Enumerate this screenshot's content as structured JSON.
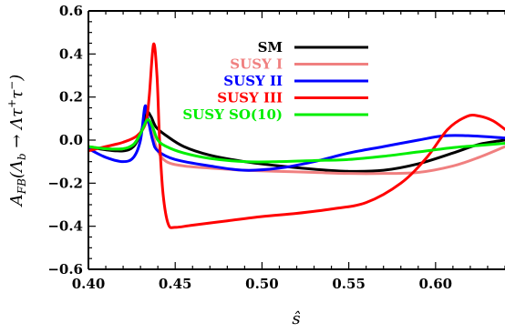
{
  "chart_data": {
    "type": "line",
    "xlabel": "ŝ",
    "ylabel": {
      "base": "A",
      "subscript": "FB",
      "paren_open": "(Λ",
      "paren_sub": "b",
      "arrow": " → Λτ",
      "sup1": "+",
      "tau2": "τ",
      "sup2": "−",
      "paren_close": ")"
    },
    "xlim": [
      0.4,
      0.64
    ],
    "ylim": [
      -0.6,
      0.6
    ],
    "x_ticks": [
      0.4,
      0.45,
      0.5,
      0.55,
      0.6
    ],
    "x_tick_labels": [
      "0.40",
      "0.45",
      "0.50",
      "0.55",
      "0.60"
    ],
    "y_ticks": [
      -0.6,
      -0.4,
      -0.2,
      0.0,
      0.2,
      0.4,
      0.6
    ],
    "y_tick_labels": [
      "−0.6",
      "−0.4",
      "−0.2",
      "0.0",
      "0.2",
      "0.4",
      "0.6"
    ],
    "legend_position": "top-right",
    "series": [
      {
        "name": "SM",
        "color": "#000000",
        "points": [
          [
            0.4,
            -0.03
          ],
          [
            0.41,
            -0.045
          ],
          [
            0.42,
            -0.05
          ],
          [
            0.426,
            -0.03
          ],
          [
            0.43,
            0.03
          ],
          [
            0.4335,
            0.125
          ],
          [
            0.436,
            0.11
          ],
          [
            0.439,
            0.06
          ],
          [
            0.445,
            0.02
          ],
          [
            0.455,
            -0.03
          ],
          [
            0.47,
            -0.07
          ],
          [
            0.49,
            -0.1
          ],
          [
            0.51,
            -0.12
          ],
          [
            0.53,
            -0.135
          ],
          [
            0.55,
            -0.145
          ],
          [
            0.57,
            -0.14
          ],
          [
            0.59,
            -0.11
          ],
          [
            0.61,
            -0.06
          ],
          [
            0.625,
            -0.02
          ],
          [
            0.64,
            0.0
          ]
        ]
      },
      {
        "name": "SUSY I",
        "color": "#f08080",
        "points": [
          [
            0.4,
            -0.03
          ],
          [
            0.41,
            -0.04
          ],
          [
            0.42,
            -0.04
          ],
          [
            0.426,
            -0.02
          ],
          [
            0.43,
            0.03
          ],
          [
            0.4335,
            0.085
          ],
          [
            0.436,
            0.05
          ],
          [
            0.44,
            -0.05
          ],
          [
            0.445,
            -0.1
          ],
          [
            0.455,
            -0.12
          ],
          [
            0.47,
            -0.13
          ],
          [
            0.49,
            -0.14
          ],
          [
            0.51,
            -0.145
          ],
          [
            0.53,
            -0.15
          ],
          [
            0.55,
            -0.155
          ],
          [
            0.57,
            -0.155
          ],
          [
            0.59,
            -0.15
          ],
          [
            0.61,
            -0.12
          ],
          [
            0.625,
            -0.08
          ],
          [
            0.64,
            -0.03
          ]
        ]
      },
      {
        "name": "SUSY II",
        "color": "#0000ff",
        "points": [
          [
            0.4,
            -0.04
          ],
          [
            0.41,
            -0.08
          ],
          [
            0.42,
            -0.1
          ],
          [
            0.426,
            -0.08
          ],
          [
            0.43,
            0.0
          ],
          [
            0.4325,
            0.155
          ],
          [
            0.434,
            0.11
          ],
          [
            0.437,
            0.0
          ],
          [
            0.44,
            -0.05
          ],
          [
            0.45,
            -0.09
          ],
          [
            0.47,
            -0.12
          ],
          [
            0.49,
            -0.14
          ],
          [
            0.51,
            -0.13
          ],
          [
            0.53,
            -0.1
          ],
          [
            0.55,
            -0.06
          ],
          [
            0.57,
            -0.03
          ],
          [
            0.59,
            0.0
          ],
          [
            0.605,
            0.02
          ],
          [
            0.62,
            0.02
          ],
          [
            0.64,
            0.01
          ]
        ]
      },
      {
        "name": "SUSY III",
        "color": "#ff0000",
        "points": [
          [
            0.4,
            -0.05
          ],
          [
            0.41,
            -0.03
          ],
          [
            0.42,
            -0.01
          ],
          [
            0.428,
            0.02
          ],
          [
            0.433,
            0.08
          ],
          [
            0.435,
            0.2
          ],
          [
            0.4375,
            0.445
          ],
          [
            0.4395,
            0.3
          ],
          [
            0.441,
            0.0
          ],
          [
            0.443,
            -0.25
          ],
          [
            0.446,
            -0.39
          ],
          [
            0.45,
            -0.405
          ],
          [
            0.46,
            -0.395
          ],
          [
            0.48,
            -0.375
          ],
          [
            0.5,
            -0.355
          ],
          [
            0.52,
            -0.34
          ],
          [
            0.54,
            -0.32
          ],
          [
            0.56,
            -0.29
          ],
          [
            0.58,
            -0.2
          ],
          [
            0.595,
            -0.08
          ],
          [
            0.607,
            0.05
          ],
          [
            0.618,
            0.11
          ],
          [
            0.625,
            0.112
          ],
          [
            0.633,
            0.09
          ],
          [
            0.64,
            0.05
          ]
        ]
      },
      {
        "name": "SUSY SO(10)",
        "color": "#00ee00",
        "points": [
          [
            0.4,
            -0.03
          ],
          [
            0.41,
            -0.04
          ],
          [
            0.42,
            -0.04
          ],
          [
            0.426,
            -0.02
          ],
          [
            0.43,
            0.03
          ],
          [
            0.434,
            0.095
          ],
          [
            0.437,
            0.06
          ],
          [
            0.44,
            0.0
          ],
          [
            0.445,
            -0.03
          ],
          [
            0.455,
            -0.06
          ],
          [
            0.47,
            -0.085
          ],
          [
            0.49,
            -0.1
          ],
          [
            0.51,
            -0.1
          ],
          [
            0.53,
            -0.095
          ],
          [
            0.55,
            -0.09
          ],
          [
            0.57,
            -0.075
          ],
          [
            0.59,
            -0.055
          ],
          [
            0.61,
            -0.035
          ],
          [
            0.625,
            -0.025
          ],
          [
            0.64,
            -0.015
          ]
        ]
      }
    ]
  }
}
